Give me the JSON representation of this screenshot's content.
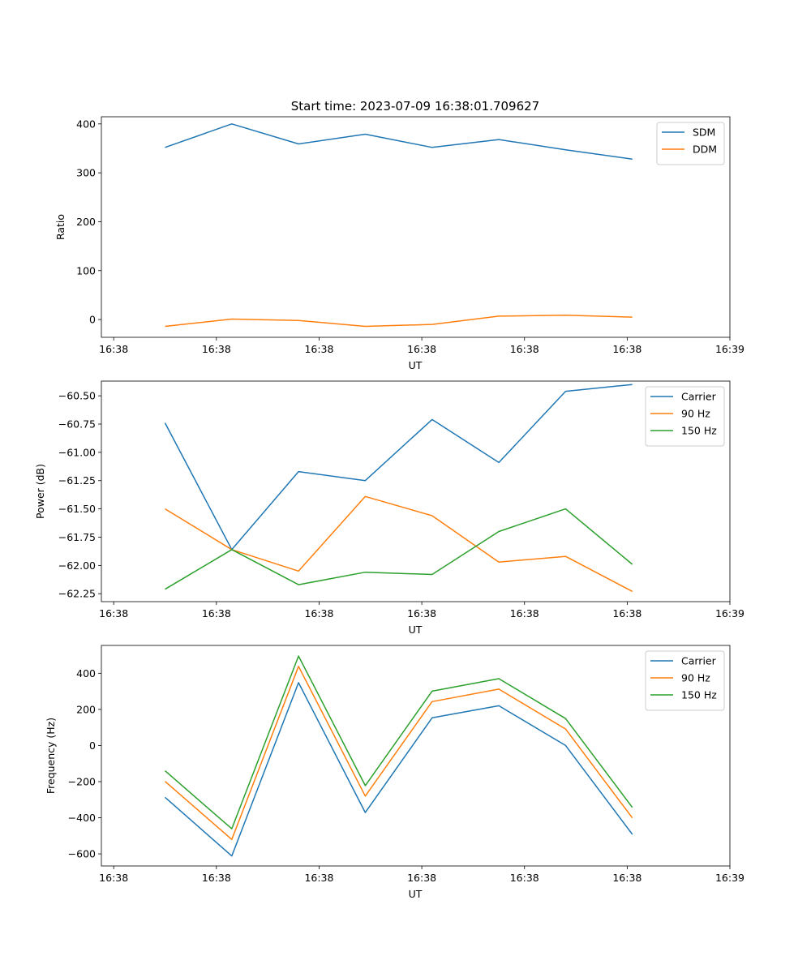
{
  "title": "Start time: 2023-07-09 16:38:01.709627",
  "colors": {
    "blue": "#1f77b4",
    "orange": "#ff7f0e",
    "green": "#2ca02c"
  },
  "chart_data": [
    {
      "type": "line",
      "ylabel": "Ratio",
      "xlabel": "UT",
      "ylim": [
        -36.3,
        414.6
      ],
      "yticks": [
        0,
        100,
        200,
        300,
        400
      ],
      "ytick_labels": [
        "0",
        "100",
        "200",
        "300",
        "400"
      ],
      "xticks": [
        0,
        1,
        2,
        3,
        4,
        5,
        6
      ],
      "xtick_labels": [
        "16:38",
        "16:38",
        "16:38",
        "16:38",
        "16:38",
        "16:38",
        "16:39"
      ],
      "xlim": [
        -0.12,
        6.0
      ],
      "x": [
        0.5,
        1.15,
        1.8,
        2.45,
        3.1,
        3.75,
        4.4,
        5.05
      ],
      "legend_loc": "upper right",
      "series": [
        {
          "name": "SDM",
          "color": "#1f77b4",
          "values": [
            352,
            400,
            359,
            379,
            352,
            368,
            347,
            328
          ]
        },
        {
          "name": "DDM",
          "color": "#ff7f0e",
          "values": [
            -14,
            1,
            -2,
            -14,
            -10,
            7,
            9,
            5
          ]
        }
      ]
    },
    {
      "type": "line",
      "ylabel": "Power (dB)",
      "xlabel": "UT",
      "ylim": [
        -62.32,
        -60.37
      ],
      "yticks": [
        -62.25,
        -62.0,
        -61.75,
        -61.5,
        -61.25,
        -61.0,
        -60.75,
        -60.5
      ],
      "ytick_labels": [
        "−62.25",
        "−62.00",
        "−61.75",
        "−61.50",
        "−61.25",
        "−61.00",
        "−60.75",
        "−60.50"
      ],
      "xticks": [
        0,
        1,
        2,
        3,
        4,
        5,
        6
      ],
      "xtick_labels": [
        "16:38",
        "16:38",
        "16:38",
        "16:38",
        "16:38",
        "16:38",
        "16:39"
      ],
      "xlim": [
        -0.12,
        6.0
      ],
      "x": [
        0.5,
        1.15,
        1.8,
        2.45,
        3.1,
        3.75,
        4.4,
        5.05
      ],
      "legend_loc": "upper right",
      "series": [
        {
          "name": "Carrier",
          "color": "#1f77b4",
          "values": [
            -60.74,
            -61.86,
            -61.17,
            -61.25,
            -60.71,
            -61.09,
            -60.46,
            -60.4
          ]
        },
        {
          "name": "90 Hz",
          "color": "#ff7f0e",
          "values": [
            -61.5,
            -61.86,
            -62.05,
            -61.39,
            -61.56,
            -61.97,
            -61.92,
            -62.23
          ]
        },
        {
          "name": "150 Hz",
          "color": "#2ca02c",
          "values": [
            -62.21,
            -61.86,
            -62.17,
            -62.06,
            -62.08,
            -61.7,
            -61.5,
            -61.99
          ]
        }
      ]
    },
    {
      "type": "line",
      "ylabel": "Frequency (Hz)",
      "xlabel": "UT",
      "ylim": [
        -667,
        554
      ],
      "yticks": [
        -600,
        -400,
        -200,
        0,
        200,
        400
      ],
      "ytick_labels": [
        "−600",
        "−400",
        "−200",
        "0",
        "200",
        "400"
      ],
      "xticks": [
        0,
        1,
        2,
        3,
        4,
        5,
        6
      ],
      "xtick_labels": [
        "16:38",
        "16:38",
        "16:38",
        "16:38",
        "16:38",
        "16:38",
        "16:39"
      ],
      "xlim": [
        -0.12,
        6.0
      ],
      "x": [
        0.5,
        1.15,
        1.8,
        2.45,
        3.1,
        3.75,
        4.4,
        5.05
      ],
      "legend_loc": "upper right",
      "series": [
        {
          "name": "Carrier",
          "color": "#1f77b4",
          "values": [
            -287,
            -612,
            348,
            -371,
            153,
            220,
            0,
            -492
          ]
        },
        {
          "name": "90 Hz",
          "color": "#ff7f0e",
          "values": [
            -199,
            -520,
            438,
            -280,
            243,
            312,
            91,
            -401
          ]
        },
        {
          "name": "150 Hz",
          "color": "#2ca02c",
          "values": [
            -140,
            -461,
            495,
            -222,
            301,
            370,
            149,
            -343
          ]
        }
      ]
    }
  ]
}
